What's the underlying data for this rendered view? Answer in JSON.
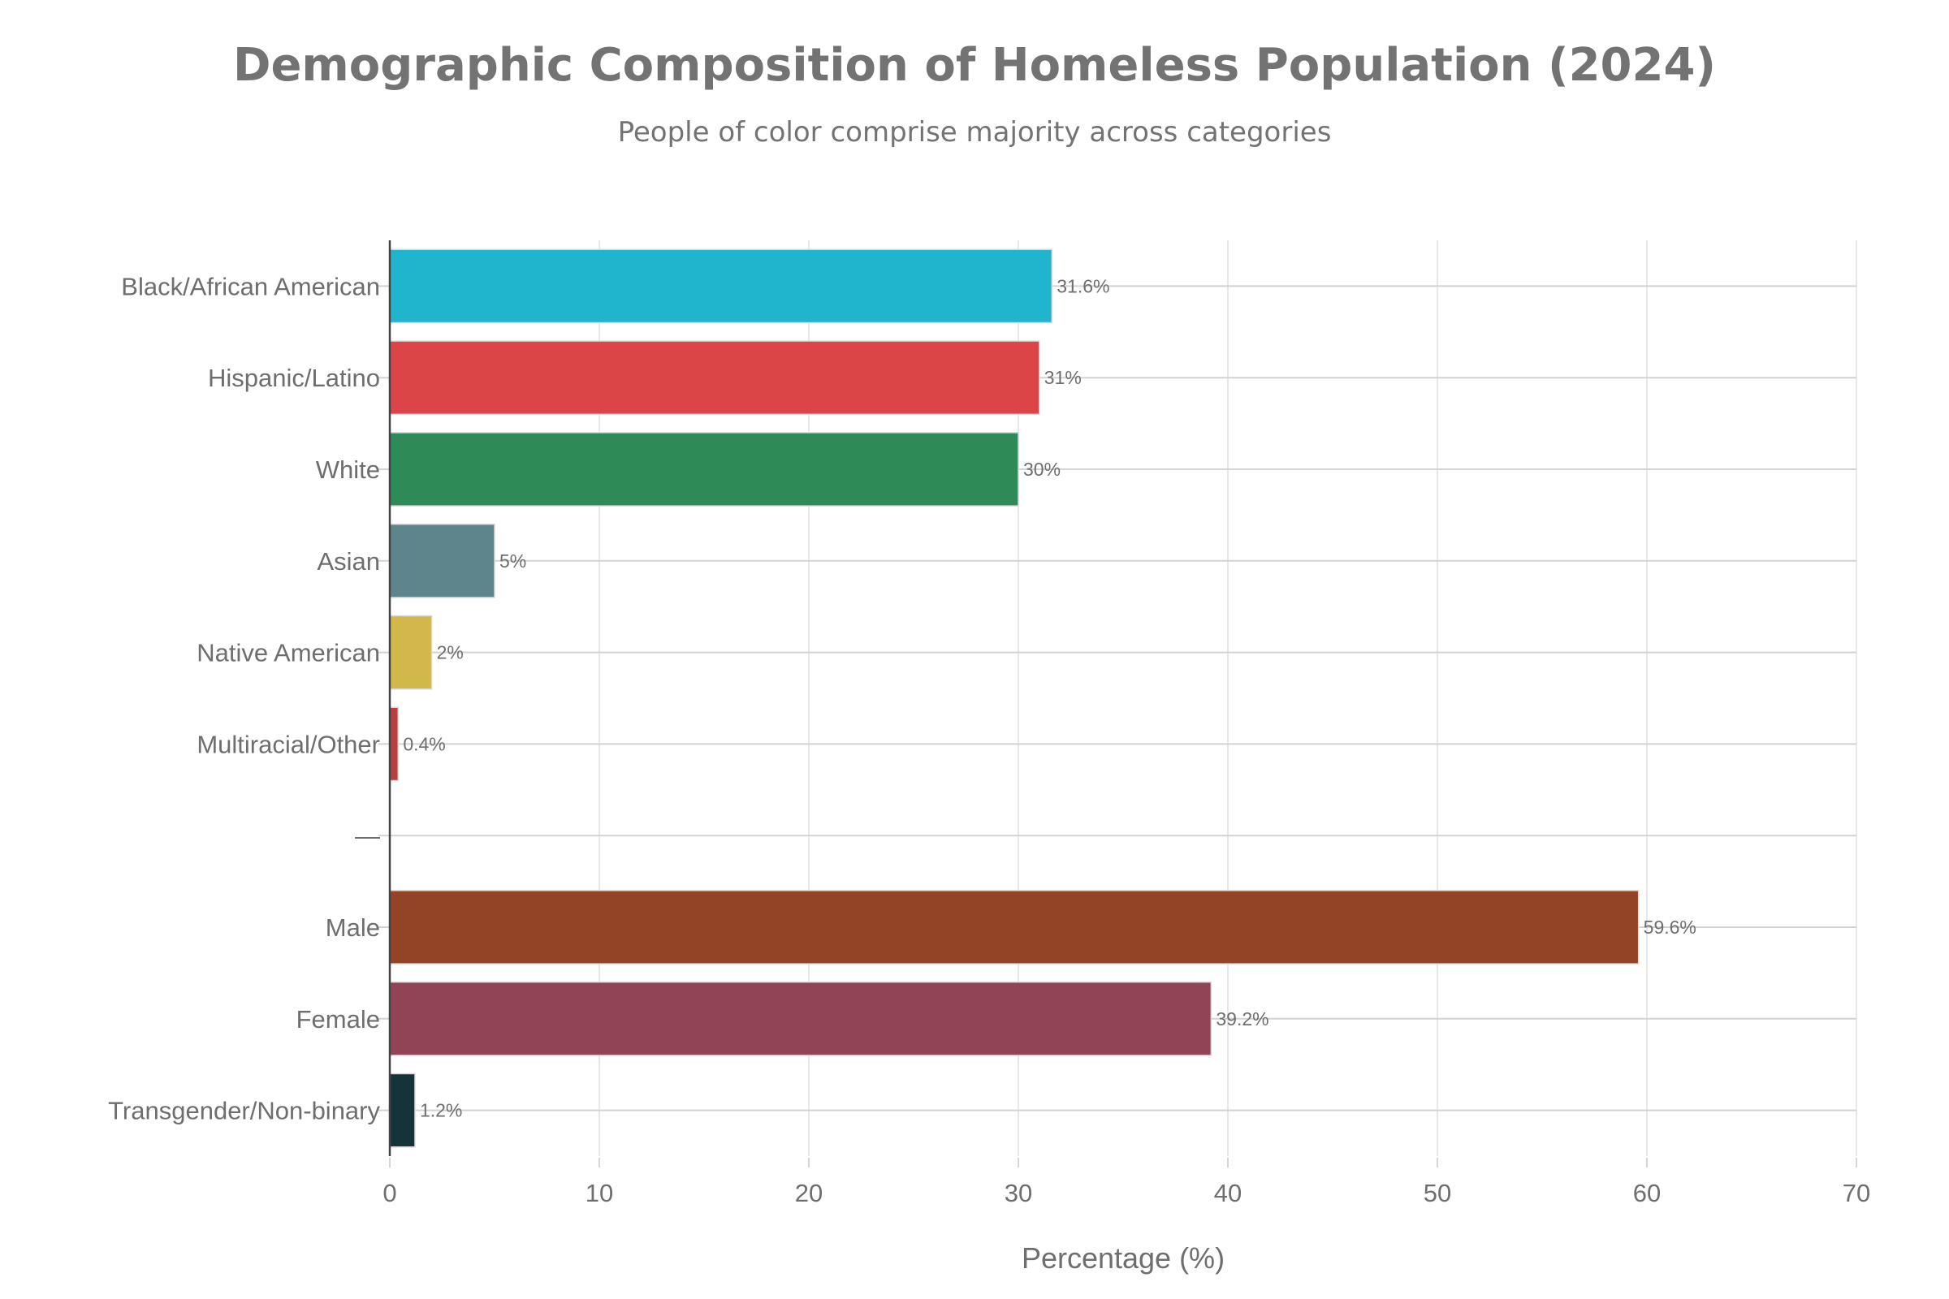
{
  "chart_data": {
    "type": "bar",
    "orientation": "horizontal",
    "title": "Demographic Composition of Homeless Population (2024)",
    "subtitle": "People of color comprise majority across categories",
    "xlabel": "Percentage (%)",
    "ylabel": "",
    "xlim": [
      0,
      70
    ],
    "xticks": [
      0,
      10,
      20,
      30,
      40,
      50,
      60,
      70
    ],
    "grid": true,
    "legend": "none",
    "categories": [
      "Black/African American",
      "Hispanic/Latino",
      "White",
      "Asian",
      "Native American",
      "Multiracial/Other",
      "—",
      "Male",
      "Female",
      "Transgender/Non-binary"
    ],
    "values": [
      31.6,
      31,
      30,
      5,
      2,
      0.4,
      null,
      59.6,
      39.2,
      1.2
    ],
    "value_labels": [
      "31.6%",
      "31%",
      "30%",
      "5%",
      "2%",
      "0.4%",
      "",
      "59.6%",
      "39.2%",
      "1.2%"
    ],
    "colors": [
      "#20b5cc",
      "#dc4548",
      "#2e8a56",
      "#5e858b",
      "#d2b84a",
      "#b94042",
      "",
      "#934326",
      "#924457",
      "#14333b"
    ]
  }
}
